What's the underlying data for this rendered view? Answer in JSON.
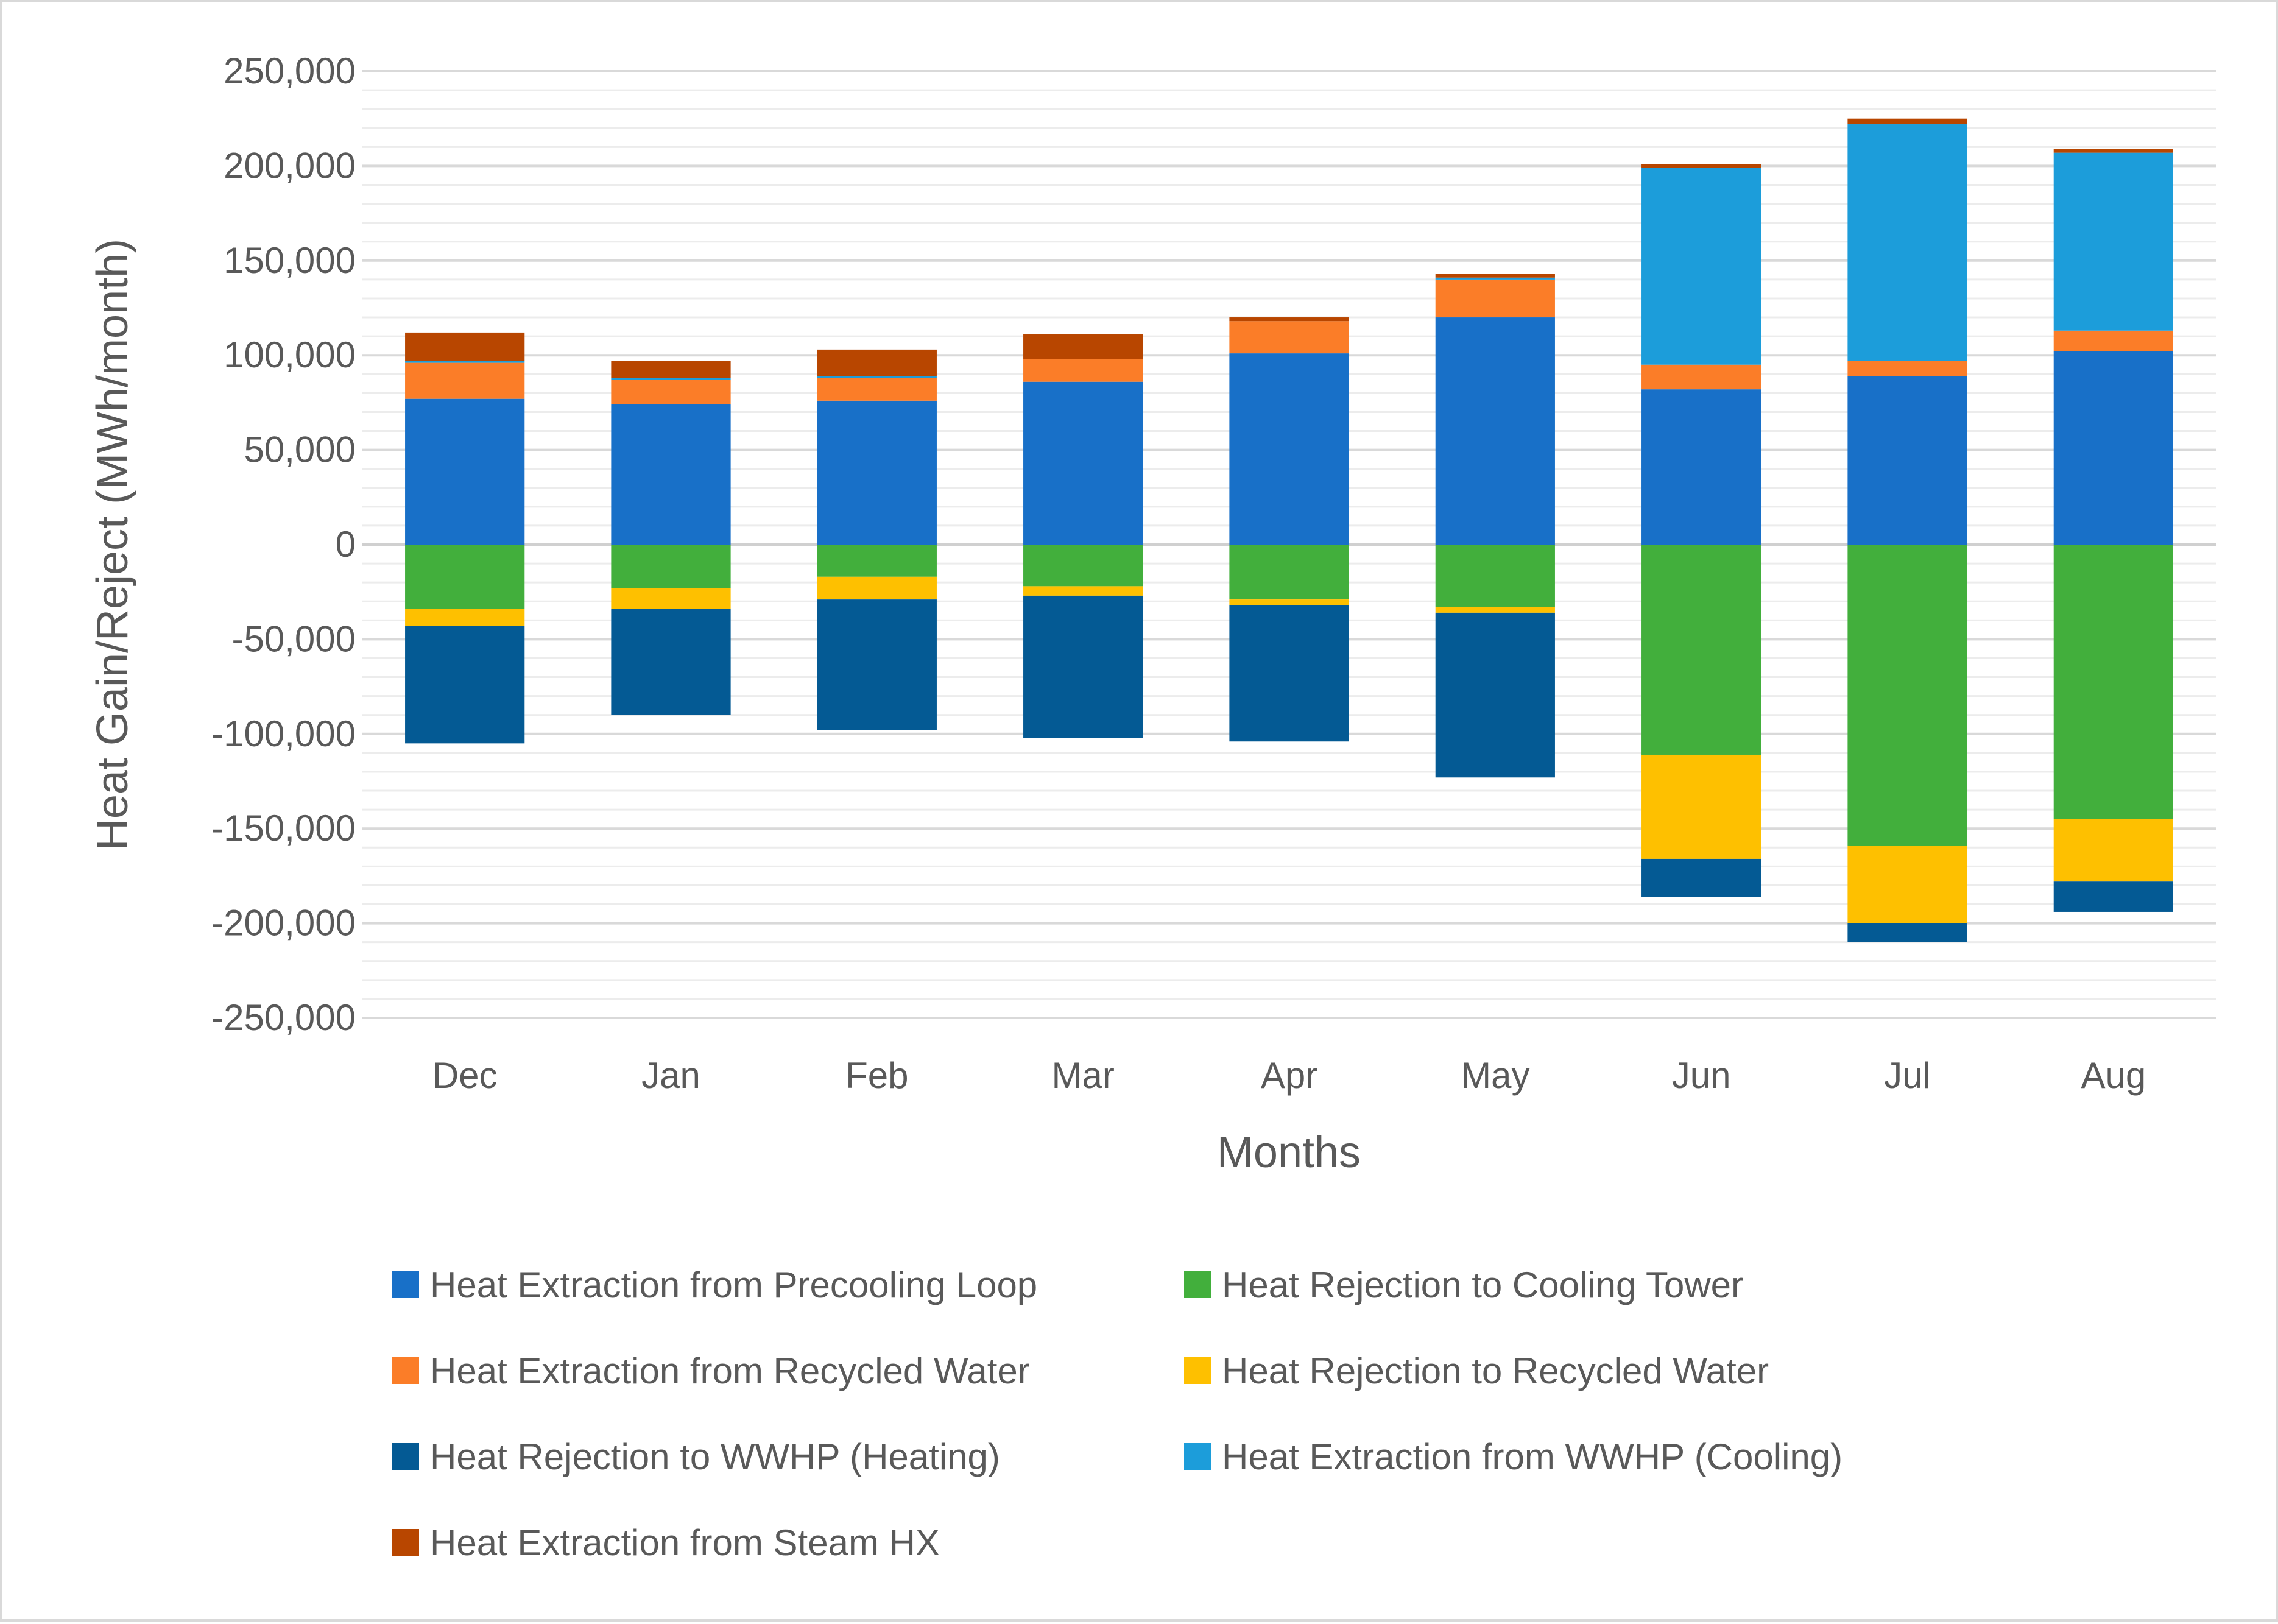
{
  "chart_data": {
    "type": "bar",
    "stacked": true,
    "title": "",
    "xlabel": "Months",
    "ylabel": "Heat Gain/Reject (MWh/month)",
    "ylim": [
      -250000,
      250000
    ],
    "ytick_step": 50000,
    "ytick_labels": [
      "250,000",
      "200,000",
      "150,000",
      "100,000",
      "50,000",
      "0",
      "-50,000",
      "-100,000",
      "-150,000",
      "-200,000",
      "-250,000"
    ],
    "grid": true,
    "minor_grid_step": 10000,
    "legend_position": "bottom",
    "categories": [
      "Dec",
      "Jan",
      "Feb",
      "Mar",
      "Apr",
      "May",
      "Jun",
      "Jul",
      "Aug"
    ],
    "series": [
      {
        "name": "Heat Extraction from Precooling Loop",
        "color": "#1870C8",
        "values": [
          77000,
          74000,
          76000,
          86000,
          101000,
          120000,
          82000,
          89000,
          102000
        ]
      },
      {
        "name": "Heat Rejection to Cooling Tower",
        "color": "#42AF3C",
        "values": [
          -34000,
          -23000,
          -17000,
          -22000,
          -29000,
          -33000,
          -111000,
          -159000,
          -145000
        ]
      },
      {
        "name": "Heat Extraction from Recycled Water",
        "color": "#FB7D28",
        "values": [
          19000,
          13000,
          12000,
          12000,
          17000,
          20000,
          13000,
          8000,
          11000
        ]
      },
      {
        "name": "Heat Rejection to Recycled Water",
        "color": "#FEC000",
        "values": [
          -9000,
          -11000,
          -12000,
          -5000,
          -3000,
          -3000,
          -55000,
          -41000,
          -33000
        ]
      },
      {
        "name": "Heat Rejection to WWHP (Heating)",
        "color": "#045A94",
        "values": [
          -62000,
          -56000,
          -69000,
          -75000,
          -72000,
          -87000,
          -20000,
          -10000,
          -16000
        ]
      },
      {
        "name": "Heat Extraction from WWHP (Cooling)",
        "color": "#1C9DDA",
        "values": [
          1000,
          1000,
          1000,
          0,
          0,
          1000,
          104000,
          125000,
          94000
        ]
      },
      {
        "name": "Heat Extraction from Steam HX",
        "color": "#B84600",
        "values": [
          15000,
          9000,
          14000,
          13000,
          2000,
          2000,
          2000,
          3000,
          2000
        ]
      }
    ]
  }
}
